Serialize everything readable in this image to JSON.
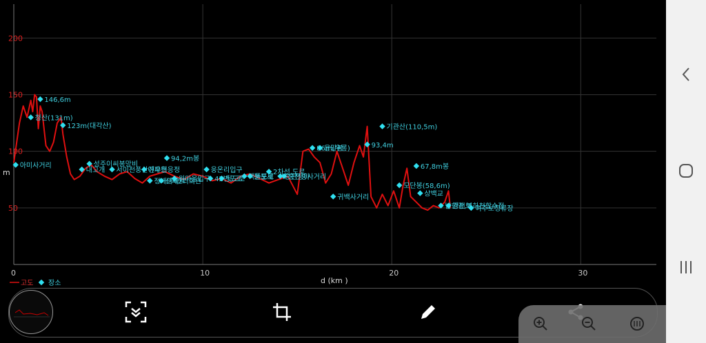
{
  "chart_data": {
    "type": "line",
    "xlabel": "d (km )",
    "ylabel": "m",
    "xlim": [
      0,
      34
    ],
    "ylim": [
      0,
      230
    ],
    "x_ticks": [
      "0",
      "10",
      "20",
      "30"
    ],
    "y_ticks": [
      "50",
      "100",
      "150",
      "200"
    ],
    "legend": {
      "placement": "bottom-left",
      "line_label": "고도",
      "point_label": "장소"
    },
    "series": [
      {
        "name": "고도",
        "color": "#e01010",
        "x": [
          0,
          0.3,
          0.5,
          0.7,
          0.9,
          1.0,
          1.1,
          1.2,
          1.3,
          1.4,
          1.5,
          1.7,
          1.9,
          2.1,
          2.3,
          2.5,
          2.6,
          2.8,
          3.0,
          3.2,
          3.5,
          3.8,
          4.1,
          4.4,
          4.8,
          5.2,
          5.6,
          6.0,
          6.4,
          6.8,
          7.2,
          7.6,
          8.0,
          8.5,
          9.0,
          9.5,
          10.0,
          10.5,
          11.0,
          11.5,
          12.0,
          12.5,
          13.0,
          13.5,
          14.0,
          14.5,
          15.0,
          15.3,
          15.6,
          15.9,
          16.2,
          16.5,
          16.8,
          17.1,
          17.4,
          17.7,
          18.0,
          18.3,
          18.5,
          18.7,
          18.9,
          19.2,
          19.5,
          19.8,
          20.1,
          20.4,
          20.6,
          20.8,
          21.0,
          21.3,
          21.6,
          21.9,
          22.2,
          22.5,
          22.8,
          23.0,
          23.1
        ],
        "y": [
          90,
          125,
          140,
          130,
          145,
          135,
          150,
          148,
          120,
          140,
          135,
          105,
          100,
          108,
          125,
          130,
          115,
          95,
          80,
          75,
          78,
          85,
          88,
          82,
          78,
          75,
          80,
          82,
          76,
          72,
          78,
          80,
          82,
          78,
          75,
          80,
          78,
          74,
          76,
          72,
          78,
          80,
          76,
          72,
          75,
          78,
          62,
          100,
          102,
          95,
          90,
          72,
          80,
          100,
          85,
          70,
          90,
          105,
          95,
          122,
          60,
          50,
          62,
          52,
          65,
          50,
          70,
          85,
          60,
          55,
          50,
          48,
          52,
          50,
          55,
          65,
          50
        ]
      }
    ],
    "points": [
      {
        "label": "아미사거리",
        "x": 0.1,
        "y": 88
      },
      {
        "label": "청산(131m)",
        "x": 0.9,
        "y": 130
      },
      {
        "label": "146,6m",
        "x": 1.4,
        "y": 146
      },
      {
        "label": "123m(대각산)",
        "x": 2.6,
        "y": 123
      },
      {
        "label": "내고개",
        "x": 3.6,
        "y": 84
      },
      {
        "label": "성주이씨봉망비",
        "x": 4.0,
        "y": 89
      },
      {
        "label": "서이천풍산아파트",
        "x": 5.2,
        "y": 84
      },
      {
        "label": "진우현응정",
        "x": 6.9,
        "y": 84
      },
      {
        "label": "정배아파트",
        "x": 7.2,
        "y": 74
      },
      {
        "label": "신재2리회관",
        "x": 7.8,
        "y": 74
      },
      {
        "label": "94,2m봉",
        "x": 8.1,
        "y": 94
      },
      {
        "label": "원마을입구",
        "x": 8.5,
        "y": 76
      },
      {
        "label": "웅온리입구",
        "x": 10.2,
        "y": 84
      },
      {
        "label": "42번도로",
        "x": 10.4,
        "y": 76
      },
      {
        "label": "뒷도로",
        "x": 11.0,
        "y": 76
      },
      {
        "label": "맥들도로",
        "x": 12.2,
        "y": 78
      },
      {
        "label": "분분세",
        "x": 12.5,
        "y": 78
      },
      {
        "label": "2차선 도로",
        "x": 13.5,
        "y": 82
      },
      {
        "label": "흥천정마",
        "x": 14.1,
        "y": 78
      },
      {
        "label": "홍천중사거리",
        "x": 14.3,
        "y": 78
      },
      {
        "label": "귀백사거리",
        "x": 16.9,
        "y": 60
      },
      {
        "label": "86m(우롱)",
        "x": 15.8,
        "y": 103
      },
      {
        "label": "93,4m",
        "x": 18.7,
        "y": 106
      },
      {
        "label": "용당봉",
        "x": 16.2,
        "y": 103
      },
      {
        "label": "기관산(110,5m)",
        "x": 19.5,
        "y": 122
      },
      {
        "label": "67,8m봉",
        "x": 21.3,
        "y": 87
      },
      {
        "label": "모단봉(58,6m)",
        "x": 20.4,
        "y": 70
      },
      {
        "label": "상백교",
        "x": 21.5,
        "y": 63
      },
      {
        "label": "남한강,복하천합수점",
        "x": 22.6,
        "y": 52
      },
      {
        "label": "강천보",
        "x": 23.0,
        "y": 52
      },
      {
        "label": "여주보정류장",
        "x": 24.2,
        "y": 50
      }
    ]
  },
  "toolbar": {
    "tools": [
      "scan-icon",
      "crop-icon",
      "pencil-icon",
      "share-icon"
    ]
  },
  "zoom": {
    "buttons": [
      "zoom-in-icon",
      "zoom-out-icon",
      "fit-icon"
    ]
  },
  "navbar": {
    "buttons": [
      "back-icon",
      "home-icon",
      "recents-icon"
    ]
  }
}
